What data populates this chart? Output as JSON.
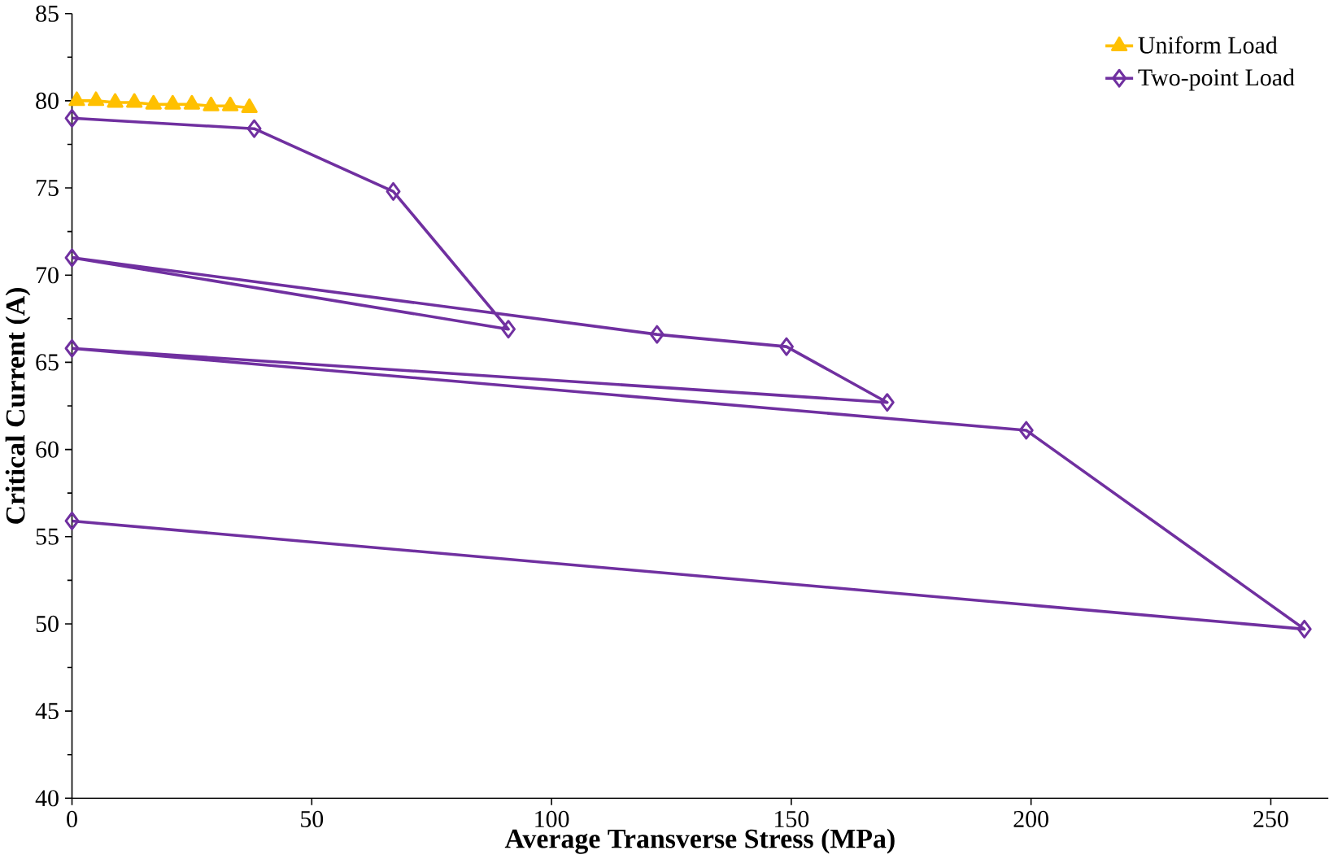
{
  "chart_data": {
    "type": "line",
    "xlabel": "Average Transverse Stress (MPa)",
    "ylabel": "Critical Current (A)",
    "xlim": [
      0,
      262
    ],
    "ylim": [
      40,
      85
    ],
    "xticks": [
      0,
      50,
      100,
      150,
      200,
      250
    ],
    "yticks": [
      40,
      45,
      50,
      55,
      60,
      65,
      70,
      75,
      80,
      85
    ],
    "grid": false,
    "legend": "top right",
    "series": [
      {
        "name": "Uniform Load",
        "color": "#ffc000",
        "marker": "triangle",
        "x": [
          1,
          5,
          9,
          13,
          17,
          21,
          25,
          29,
          33,
          37
        ],
        "values": [
          80,
          80,
          79.9,
          79.9,
          79.8,
          79.8,
          79.8,
          79.7,
          79.7,
          79.6
        ]
      },
      {
        "name": "Two-point Load",
        "color": "#7030a0",
        "marker": "diamond",
        "x": [
          0,
          38,
          67,
          91,
          0,
          122,
          149,
          170,
          0,
          199,
          257,
          0
        ],
        "values": [
          79,
          78.4,
          74.8,
          66.9,
          71,
          66.6,
          65.9,
          62.7,
          65.8,
          61.1,
          49.7,
          55.9
        ]
      }
    ]
  }
}
